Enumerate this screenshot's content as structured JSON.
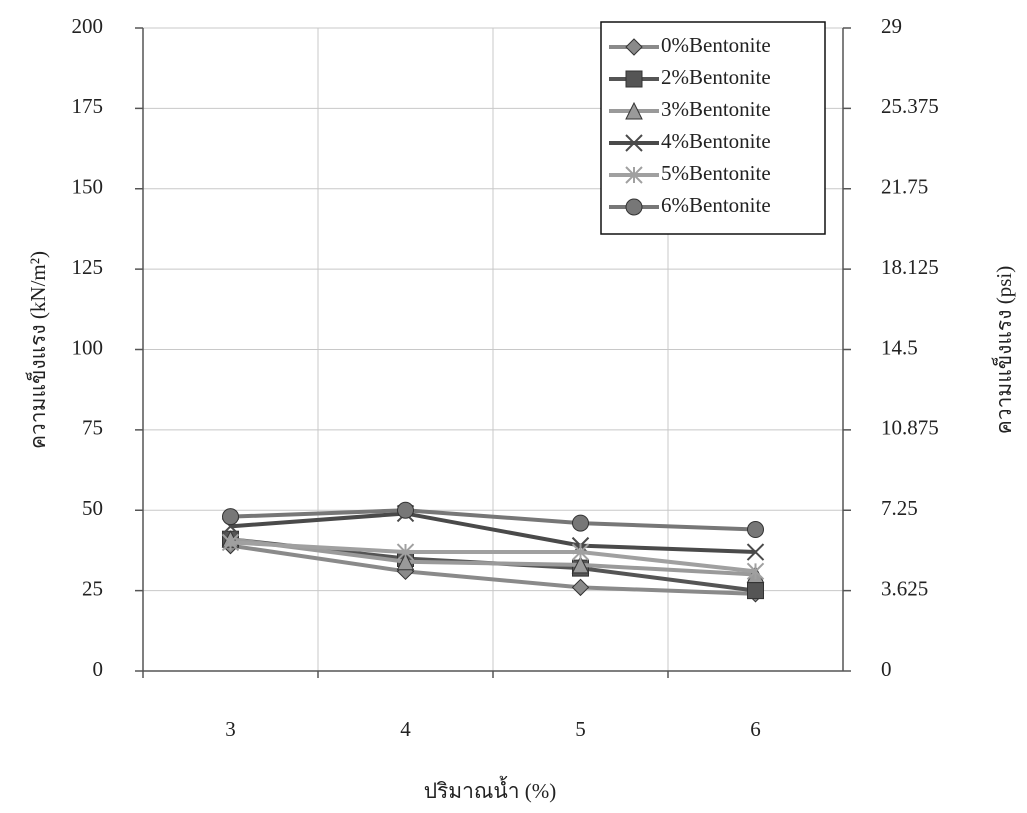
{
  "chart_data": {
    "type": "line",
    "x_label": "ปริมาณน้ำ (%)",
    "y_label": "ความแข็งแรง (kN/m²)",
    "y2_label": "ความแข็งแรง (psi)",
    "categories": [
      "3",
      "4",
      "5",
      "6"
    ],
    "ylim": [
      0,
      200
    ],
    "yticks": [
      0,
      25,
      50,
      75,
      100,
      125,
      150,
      175,
      200
    ],
    "y2lim": [
      0,
      29
    ],
    "y2ticks": [
      0,
      3.625,
      7.25,
      10.875,
      14.5,
      18.125,
      21.75,
      25.375,
      29
    ],
    "grid": true,
    "legend": "upper right",
    "series": [
      {
        "name": "0%Bentonite",
        "color": "#8a8a8a",
        "marker": "diamond",
        "values": [
          39,
          31,
          26,
          24
        ]
      },
      {
        "name": "2%Bentonite",
        "color": "#555555",
        "marker": "square",
        "values": [
          41,
          35,
          32,
          25
        ]
      },
      {
        "name": "3%Bentonite",
        "color": "#9a9a9a",
        "marker": "triangle",
        "values": [
          41,
          34,
          33,
          30
        ]
      },
      {
        "name": "4%Bentonite",
        "color": "#4a4a4a",
        "marker": "x",
        "values": [
          45,
          49,
          39,
          37
        ]
      },
      {
        "name": "5%Bentonite",
        "color": "#a0a0a0",
        "marker": "star",
        "values": [
          40,
          37,
          37,
          31
        ]
      },
      {
        "name": "6%Bentonite",
        "color": "#777777",
        "marker": "circle",
        "values": [
          48,
          50,
          46,
          44
        ]
      }
    ]
  }
}
